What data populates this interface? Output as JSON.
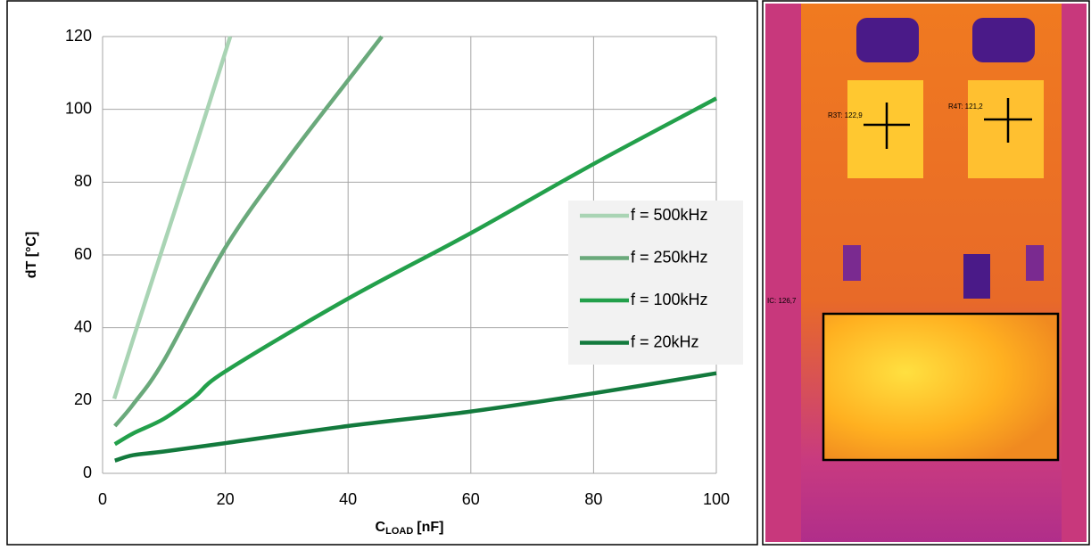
{
  "chart_data": {
    "type": "line",
    "y_label": "dT [°C]",
    "x_label": {
      "main": "C",
      "sub": "LOAD",
      "unit": "[nF]"
    },
    "xlim": [
      0,
      100
    ],
    "xticks": [
      0,
      20,
      40,
      60,
      80,
      100
    ],
    "ylim": [
      0,
      120
    ],
    "yticks": [
      0,
      20,
      40,
      60,
      80,
      100,
      120
    ],
    "grid": true,
    "legend": "right",
    "series": [
      {
        "name": "f = 500kHz",
        "color": "#a9d4b4",
        "x": [
          1.9,
          5,
          10,
          15,
          20.8
        ],
        "values": [
          20.5,
          37,
          63,
          89,
          120
        ]
      },
      {
        "name": "f = 250kHz",
        "color": "#6aa97b",
        "x": [
          2,
          5,
          10,
          20,
          30,
          40,
          45.5
        ],
        "values": [
          13,
          19,
          31,
          62,
          86,
          108,
          120
        ]
      },
      {
        "name": "f = 100kHz",
        "color": "#23a04b",
        "x": [
          2,
          5,
          10,
          15,
          20,
          40,
          60,
          80,
          100
        ],
        "values": [
          8,
          11,
          15,
          21,
          28,
          48,
          66,
          85,
          103
        ]
      },
      {
        "name": "f = 20kHz",
        "color": "#137a3d",
        "x": [
          2,
          5,
          10,
          20,
          40,
          60,
          80,
          100
        ],
        "values": [
          3.5,
          5,
          6,
          8.3,
          13,
          17,
          22,
          27.5
        ]
      }
    ]
  },
  "thermal_image": {
    "labels": [
      "R3T: 122,9",
      "R4T: 121,2",
      "IC: 126,7"
    ]
  }
}
